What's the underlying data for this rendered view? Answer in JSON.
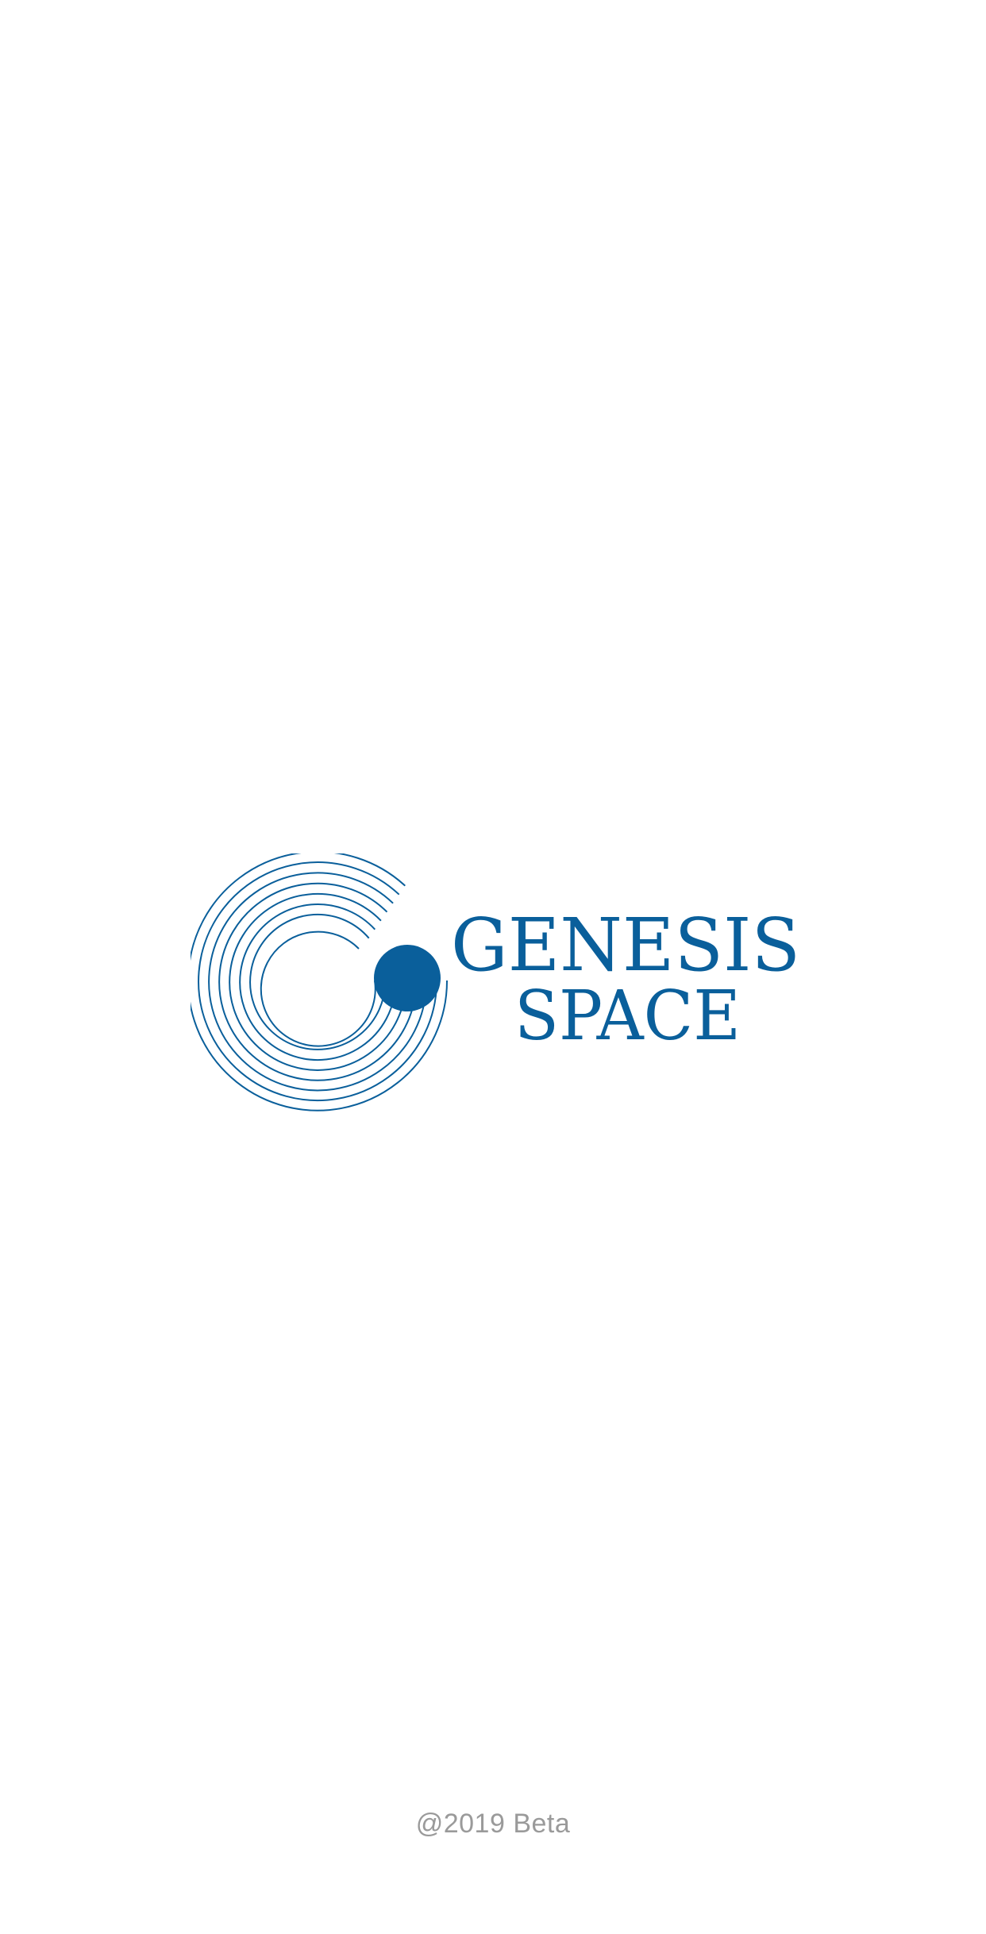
{
  "splash": {
    "brand": {
      "line1": "GENESIS",
      "line2": "SPACE",
      "color": "#0a5f9b",
      "icon": "concentric-arc-logo-icon"
    },
    "footer_text": "@2019 Beta",
    "footer_color": "#9a9a9a",
    "background": "#ffffff"
  }
}
